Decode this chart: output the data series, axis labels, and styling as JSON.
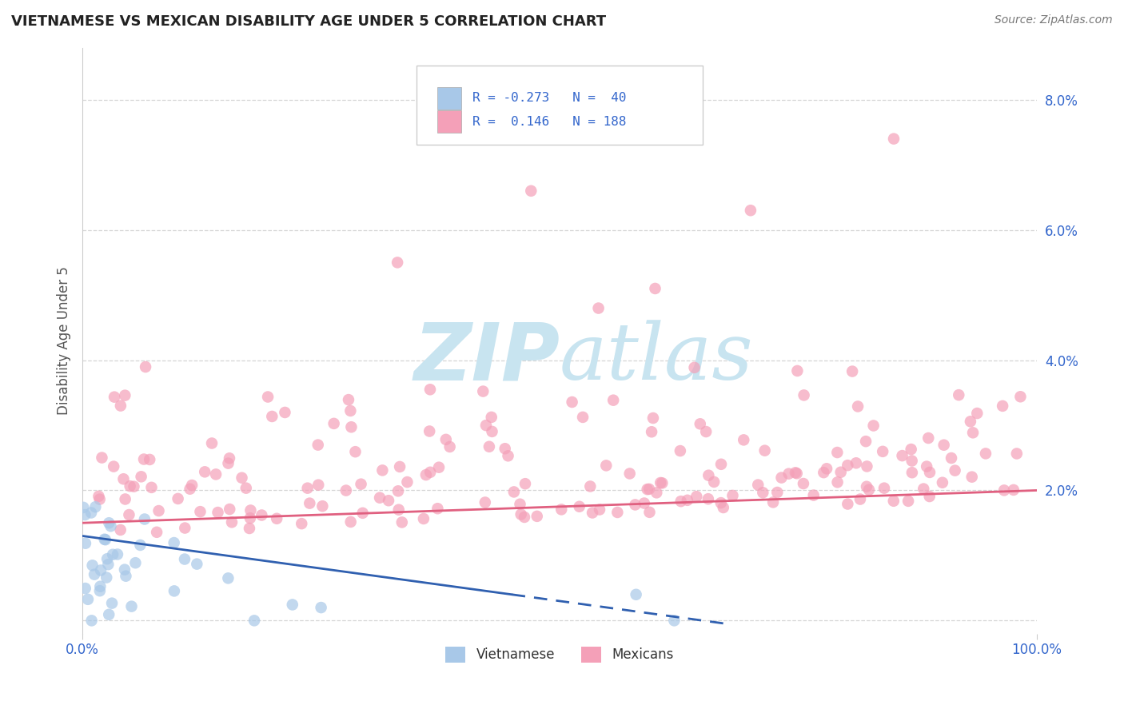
{
  "title": "VIETNAMESE VS MEXICAN DISABILITY AGE UNDER 5 CORRELATION CHART",
  "source": "Source: ZipAtlas.com",
  "ylabel": "Disability Age Under 5",
  "xlim": [
    0.0,
    1.0
  ],
  "ylim": [
    -0.002,
    0.088
  ],
  "ytick_vals": [
    0.0,
    0.02,
    0.04,
    0.06,
    0.08
  ],
  "ytick_labels": [
    "",
    "2.0%",
    "4.0%",
    "6.0%",
    "8.0%"
  ],
  "xtick_vals": [
    0.0,
    1.0
  ],
  "xtick_labels": [
    "0.0%",
    "100.0%"
  ],
  "viet_color": "#a8c8e8",
  "mex_color": "#f4a0b8",
  "viet_line_color": "#3060b0",
  "mex_line_color": "#e06080",
  "viet_R": -0.273,
  "viet_N": 40,
  "mex_R": 0.146,
  "mex_N": 188,
  "background_color": "#ffffff",
  "grid_color": "#cccccc",
  "title_color": "#222222",
  "title_fontsize": 13,
  "axis_label_color": "#3366cc",
  "ylabel_color": "#555555",
  "legend_R_color": "#3366cc",
  "watermark_color": "#c8e4f0"
}
